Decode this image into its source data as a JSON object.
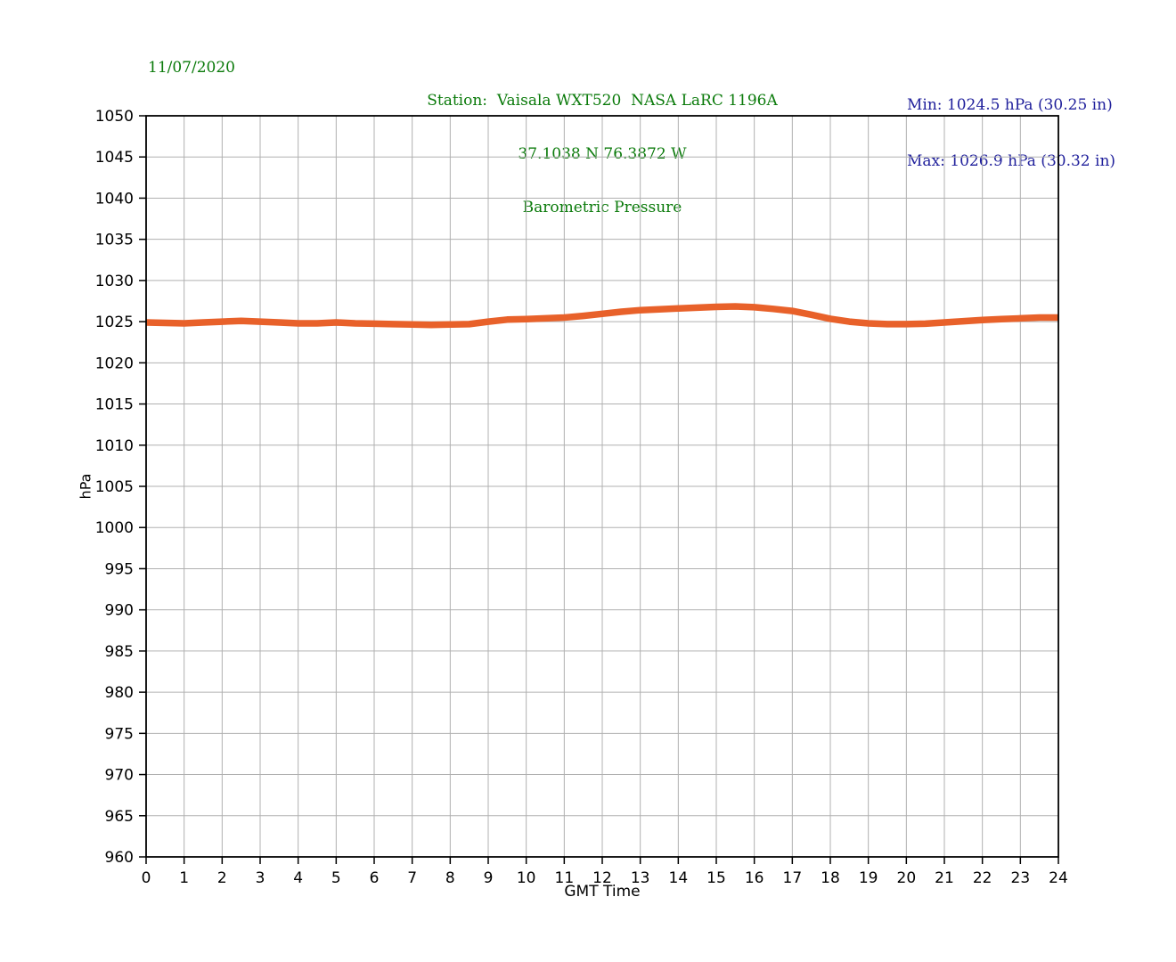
{
  "header": {
    "date": "11/07/2020",
    "title_line1": "Station:  Vaisala WXT520  NASA LaRC 1196A",
    "title_line2": "37.1038 N 76.3872 W",
    "title_line3": "Barometric Pressure",
    "min_label": "Min: 1024.5 hPa (30.25 in)",
    "max_label": "Max: 1026.9 hPa (30.32 in)"
  },
  "colors": {
    "green": "#0a7a0a",
    "blue": "#21219c",
    "line": "#e8612a",
    "grid": "#b0b0b0",
    "axis": "#000000"
  },
  "chart_data": {
    "type": "line",
    "title": "Barometric Pressure",
    "station": "Vaisala WXT520  NASA LaRC 1196A",
    "coordinates": "37.1038 N 76.3872 W",
    "date": "11/07/2020",
    "xlabel": "GMT Time",
    "ylabel": "hPa",
    "xlim": [
      0,
      24
    ],
    "ylim": [
      960,
      1050
    ],
    "xticks": [
      0,
      1,
      2,
      3,
      4,
      5,
      6,
      7,
      8,
      9,
      10,
      11,
      12,
      13,
      14,
      15,
      16,
      17,
      18,
      19,
      20,
      21,
      22,
      23,
      24
    ],
    "yticks": [
      960,
      965,
      970,
      975,
      980,
      985,
      990,
      995,
      1000,
      1005,
      1010,
      1015,
      1020,
      1025,
      1030,
      1035,
      1040,
      1045,
      1050
    ],
    "grid": true,
    "legend": null,
    "min_hPa": 1024.5,
    "min_in": 30.25,
    "max_hPa": 1026.9,
    "max_in": 30.32,
    "series": [
      {
        "name": "barometric_pressure_hPa",
        "x": [
          0,
          0.5,
          1,
          1.5,
          2,
          2.5,
          3,
          3.5,
          4,
          4.5,
          5,
          5.5,
          6,
          6.5,
          7,
          7.5,
          8,
          8.5,
          9,
          9.5,
          10,
          10.5,
          11,
          11.5,
          12,
          12.5,
          13,
          13.5,
          14,
          14.5,
          15,
          15.5,
          16,
          16.5,
          17,
          17.5,
          18,
          18.5,
          19,
          19.5,
          20,
          20.5,
          21,
          21.5,
          22,
          22.5,
          23,
          23.5,
          24
        ],
        "y": [
          1024.9,
          1024.85,
          1024.8,
          1024.9,
          1025.0,
          1025.1,
          1025.0,
          1024.9,
          1024.8,
          1024.8,
          1024.9,
          1024.8,
          1024.75,
          1024.7,
          1024.65,
          1024.6,
          1024.65,
          1024.7,
          1025.0,
          1025.25,
          1025.3,
          1025.4,
          1025.5,
          1025.7,
          1025.95,
          1026.2,
          1026.4,
          1026.5,
          1026.6,
          1026.7,
          1026.8,
          1026.85,
          1026.75,
          1026.55,
          1026.3,
          1025.85,
          1025.35,
          1025.0,
          1024.8,
          1024.7,
          1024.7,
          1024.75,
          1024.9,
          1025.05,
          1025.2,
          1025.3,
          1025.4,
          1025.5,
          1025.5
        ]
      }
    ]
  }
}
